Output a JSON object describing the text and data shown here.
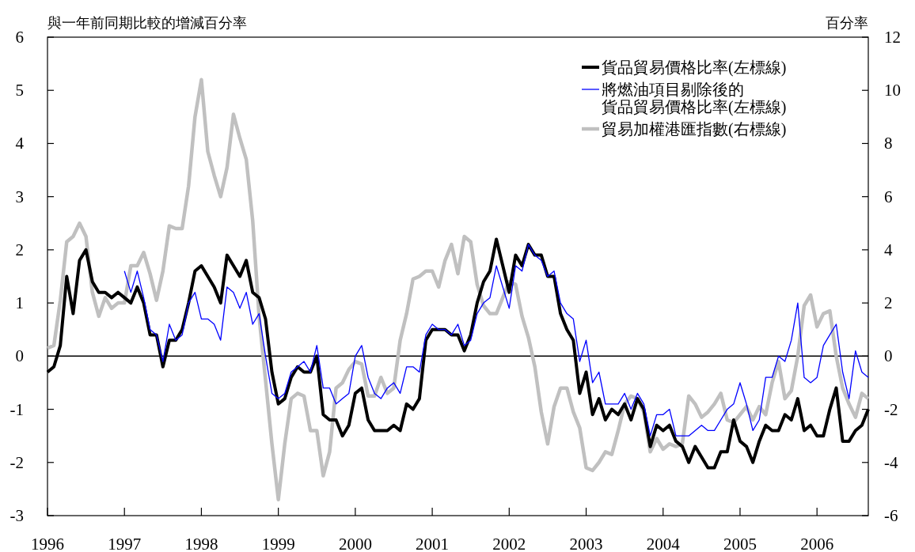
{
  "chart_data": {
    "type": "line",
    "ylabel": "與一年前同期比較的增減百分率",
    "y2label": "百分率",
    "x": [
      "1996-01",
      "1996-02",
      "1996-03",
      "1996-04",
      "1996-05",
      "1996-06",
      "1996-07",
      "1996-08",
      "1996-09",
      "1996-10",
      "1996-11",
      "1996-12",
      "1997-01",
      "1997-02",
      "1997-03",
      "1997-04",
      "1997-05",
      "1997-06",
      "1997-07",
      "1997-08",
      "1997-09",
      "1997-10",
      "1997-11",
      "1997-12",
      "1998-01",
      "1998-02",
      "1998-03",
      "1998-04",
      "1998-05",
      "1998-06",
      "1998-07",
      "1998-08",
      "1998-09",
      "1998-10",
      "1998-11",
      "1998-12",
      "1999-01",
      "1999-02",
      "1999-03",
      "1999-04",
      "1999-05",
      "1999-06",
      "1999-07",
      "1999-08",
      "1999-09",
      "1999-10",
      "1999-11",
      "1999-12",
      "2000-01",
      "2000-02",
      "2000-03",
      "2000-04",
      "2000-05",
      "2000-06",
      "2000-07",
      "2000-08",
      "2000-09",
      "2000-10",
      "2000-11",
      "2000-12",
      "2001-01",
      "2001-02",
      "2001-03",
      "2001-04",
      "2001-05",
      "2001-06",
      "2001-07",
      "2001-08",
      "2001-09",
      "2001-10",
      "2001-11",
      "2001-12",
      "2002-01",
      "2002-02",
      "2002-03",
      "2002-04",
      "2002-05",
      "2002-06",
      "2002-07",
      "2002-08",
      "2002-09",
      "2002-10",
      "2002-11",
      "2002-12",
      "2003-01",
      "2003-02",
      "2003-03",
      "2003-04",
      "2003-05",
      "2003-06",
      "2003-07",
      "2003-08",
      "2003-09",
      "2003-10",
      "2003-11",
      "2003-12",
      "2004-01",
      "2004-02",
      "2004-03",
      "2004-04",
      "2004-05",
      "2004-06",
      "2004-07",
      "2004-08",
      "2004-09",
      "2004-10",
      "2004-11",
      "2004-12",
      "2005-01",
      "2005-02",
      "2005-03",
      "2005-04",
      "2005-05",
      "2005-06",
      "2005-07",
      "2005-08",
      "2005-09",
      "2005-10",
      "2005-11",
      "2005-12",
      "2006-01",
      "2006-02",
      "2006-03",
      "2006-04",
      "2006-05",
      "2006-06",
      "2006-07",
      "2006-08",
      "2006-09"
    ],
    "series": [
      {
        "name": "貨品貿易價格比率(左標線)",
        "color": "#000000",
        "values": [
          -0.3,
          -0.2,
          0.2,
          1.5,
          0.8,
          1.8,
          2.0,
          1.4,
          1.2,
          1.2,
          1.1,
          1.2,
          1.1,
          1.0,
          1.3,
          1.0,
          0.4,
          0.4,
          -0.2,
          0.3,
          0.3,
          0.5,
          1.0,
          1.6,
          1.7,
          1.5,
          1.3,
          1.0,
          1.9,
          1.7,
          1.5,
          1.8,
          1.2,
          1.1,
          0.7,
          -0.3,
          -0.9,
          -0.8,
          -0.4,
          -0.2,
          -0.3,
          -0.3,
          0.0,
          -1.1,
          -1.2,
          -1.2,
          -1.5,
          -1.3,
          -0.7,
          -0.6,
          -1.2,
          -1.4,
          -1.4,
          -1.4,
          -1.3,
          -1.4,
          -0.9,
          -1.0,
          -0.8,
          0.3,
          0.5,
          0.5,
          0.5,
          0.4,
          0.4,
          0.1,
          0.4,
          1.0,
          1.4,
          1.6,
          2.2,
          1.7,
          1.2,
          1.9,
          1.7,
          2.1,
          1.9,
          1.9,
          1.5,
          1.5,
          0.8,
          0.5,
          0.3,
          -0.7,
          -0.3,
          -1.1,
          -0.8,
          -1.2,
          -1.0,
          -1.1,
          -0.9,
          -1.2,
          -0.8,
          -1.0,
          -1.7,
          -1.3,
          -1.4,
          -1.3,
          -1.6,
          -1.7,
          -2.0,
          -1.7,
          -1.9,
          -2.1,
          -2.1,
          -1.8,
          -1.8,
          -1.2,
          -1.6,
          -1.7,
          -2.0,
          -1.6,
          -1.3,
          -1.4,
          -1.4,
          -1.1,
          -1.2,
          -0.8,
          -1.4,
          -1.3,
          -1.5,
          -1.5,
          -1.0,
          -0.6,
          -1.6,
          -1.6,
          -1.4,
          -1.3,
          -1.0
        ]
      },
      {
        "name": "將燃油項目剔除後的貨品貿易價格比率(左標線)",
        "color": "#0000ff",
        "values": [
          null,
          null,
          null,
          null,
          null,
          null,
          null,
          null,
          null,
          null,
          null,
          null,
          1.6,
          1.2,
          1.6,
          1.1,
          0.5,
          0.4,
          -0.1,
          0.6,
          0.3,
          0.4,
          1.0,
          1.2,
          0.7,
          0.7,
          0.6,
          0.3,
          1.3,
          1.2,
          0.9,
          1.2,
          0.6,
          0.8,
          0.0,
          -0.7,
          -0.8,
          -0.7,
          -0.3,
          -0.2,
          -0.1,
          -0.3,
          0.2,
          -0.6,
          -0.6,
          -0.9,
          -0.8,
          -0.7,
          0.0,
          0.2,
          -0.4,
          -0.7,
          -0.8,
          -0.6,
          -0.5,
          -0.7,
          -0.2,
          -0.2,
          -0.3,
          0.4,
          0.6,
          0.5,
          0.5,
          0.4,
          0.6,
          0.2,
          0.3,
          0.8,
          1.0,
          1.1,
          1.7,
          1.3,
          0.9,
          1.7,
          1.6,
          2.1,
          1.9,
          1.8,
          1.5,
          1.6,
          1.0,
          0.8,
          0.7,
          -0.1,
          0.3,
          -0.5,
          -0.3,
          -0.9,
          -0.9,
          -0.9,
          -0.7,
          -1.0,
          -0.7,
          -0.9,
          -1.5,
          -1.1,
          -1.1,
          -1.0,
          -1.5,
          -1.5,
          -1.5,
          -1.4,
          -1.3,
          -1.4,
          -1.4,
          -1.2,
          -1.0,
          -0.9,
          -0.5,
          -0.9,
          -1.4,
          -1.2,
          -0.4,
          -0.4,
          0.0,
          -0.1,
          0.3,
          1.0,
          -0.4,
          -0.5,
          -0.4,
          0.2,
          0.4,
          0.6,
          -0.3,
          -0.8,
          0.1,
          -0.3,
          -0.4
        ]
      },
      {
        "name": "貿易加權港匯指數(右標線)",
        "color": "#c0c0c0",
        "axis": "y2",
        "values": [
          0.3,
          0.4,
          2.1,
          4.3,
          4.5,
          5.0,
          4.5,
          2.4,
          1.5,
          2.2,
          1.8,
          2.0,
          2.0,
          3.4,
          3.4,
          3.9,
          3.1,
          2.1,
          3.2,
          4.9,
          4.8,
          4.8,
          6.4,
          9.0,
          10.4,
          7.7,
          6.8,
          6.0,
          7.1,
          9.1,
          8.2,
          7.4,
          5.1,
          1.5,
          -0.9,
          -3.3,
          -5.4,
          -3.3,
          -1.6,
          -1.4,
          -1.5,
          -2.8,
          -2.8,
          -4.5,
          -3.6,
          -1.2,
          -1.0,
          -0.5,
          -0.2,
          -0.3,
          -1.5,
          -1.5,
          -0.8,
          -1.4,
          -1.2,
          0.6,
          1.6,
          2.9,
          3.0,
          3.2,
          3.2,
          2.6,
          3.6,
          4.2,
          3.1,
          4.5,
          4.3,
          2.7,
          1.9,
          1.6,
          1.6,
          2.2,
          2.8,
          2.7,
          1.5,
          0.7,
          -0.4,
          -2.1,
          -3.3,
          -1.9,
          -1.2,
          -1.2,
          -2.1,
          -2.7,
          -4.2,
          -4.3,
          -4.0,
          -3.6,
          -3.7,
          -2.8,
          -1.8,
          -1.5,
          -1.6,
          -2.1,
          -3.6,
          -3.1,
          -3.5,
          -3.3,
          -3.4,
          -3.3,
          -1.5,
          -1.8,
          -2.3,
          -2.1,
          -1.8,
          -1.4,
          -2.4,
          -2.5,
          -2.2,
          -1.9,
          -2.4,
          -1.9,
          -2.2,
          -1.0,
          -0.2,
          -1.6,
          -1.3,
          0.0,
          1.9,
          2.3,
          1.1,
          1.6,
          1.7,
          0.0,
          -1.2,
          -1.8,
          -2.3,
          -1.4,
          -1.6
        ]
      }
    ],
    "xlim": [
      "1996-01",
      "2006-09"
    ],
    "xticks": [
      "1996",
      "1997",
      "1998",
      "1999",
      "2000",
      "2001",
      "2002",
      "2003",
      "2004",
      "2005",
      "2006"
    ],
    "ylim": [
      -3,
      6
    ],
    "yticks": [
      -3,
      -2,
      -1,
      0,
      1,
      2,
      3,
      4,
      5,
      6
    ],
    "y2lim": [
      -6,
      12
    ],
    "y2ticks": [
      -6,
      -4,
      -2,
      0,
      2,
      4,
      6,
      8,
      10,
      12
    ],
    "ref_lines": [
      {
        "axis": "y",
        "value": 0,
        "color": "#000000"
      }
    ],
    "grid": false,
    "legend": "top right",
    "marker": "none",
    "line_style": "solid"
  }
}
